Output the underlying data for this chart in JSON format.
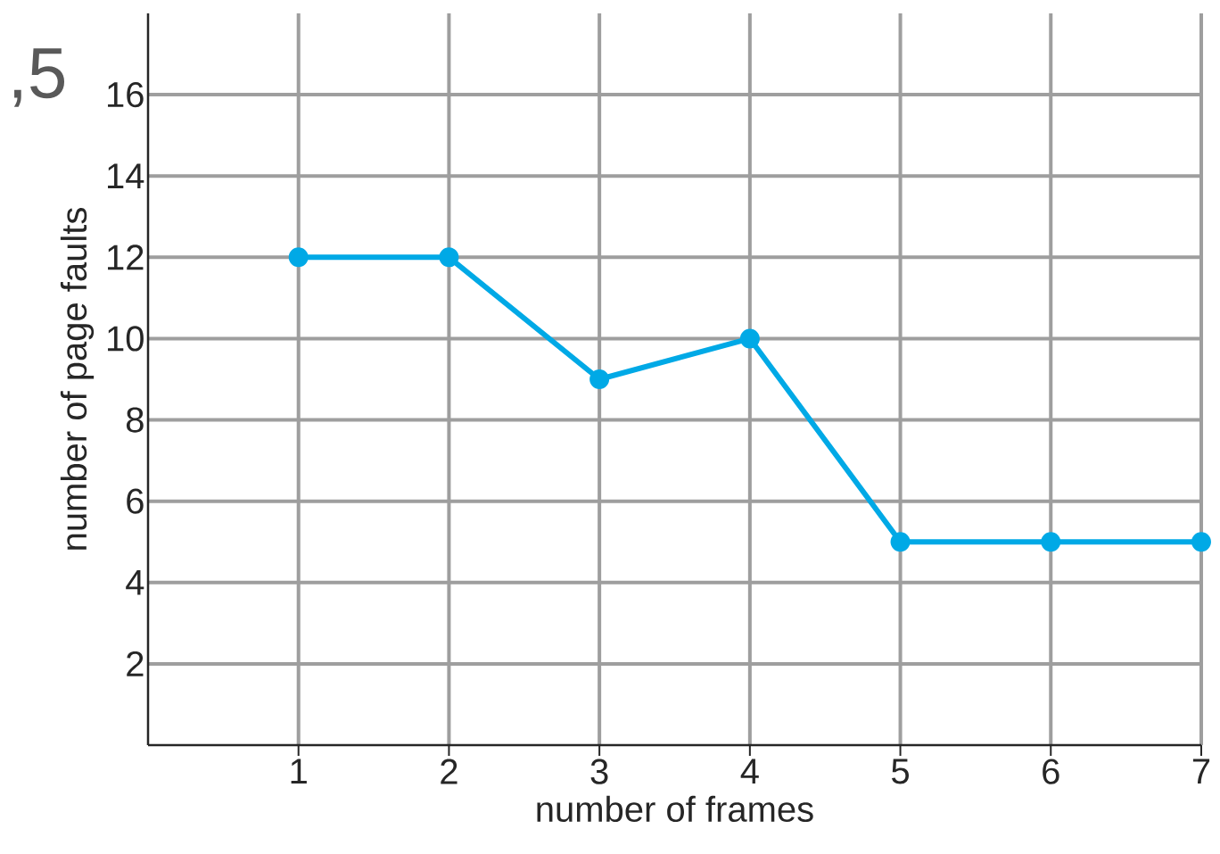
{
  "chart_data": {
    "type": "line",
    "xlabel": "number of frames",
    "ylabel": "number of page faults",
    "annotations": [
      ",5"
    ],
    "x": [
      1,
      2,
      3,
      4,
      5,
      6,
      7
    ],
    "values": [
      12,
      12,
      9,
      10,
      5,
      5,
      5
    ],
    "color": "#00a9e6",
    "xlim": [
      0,
      7
    ],
    "ylim": [
      0,
      18
    ],
    "xticks": [
      1,
      2,
      3,
      4,
      5,
      6,
      7
    ],
    "yticks": [
      2,
      4,
      6,
      8,
      10,
      12,
      14,
      16
    ],
    "grid": true,
    "marker": "circle",
    "line_style": "solid"
  }
}
